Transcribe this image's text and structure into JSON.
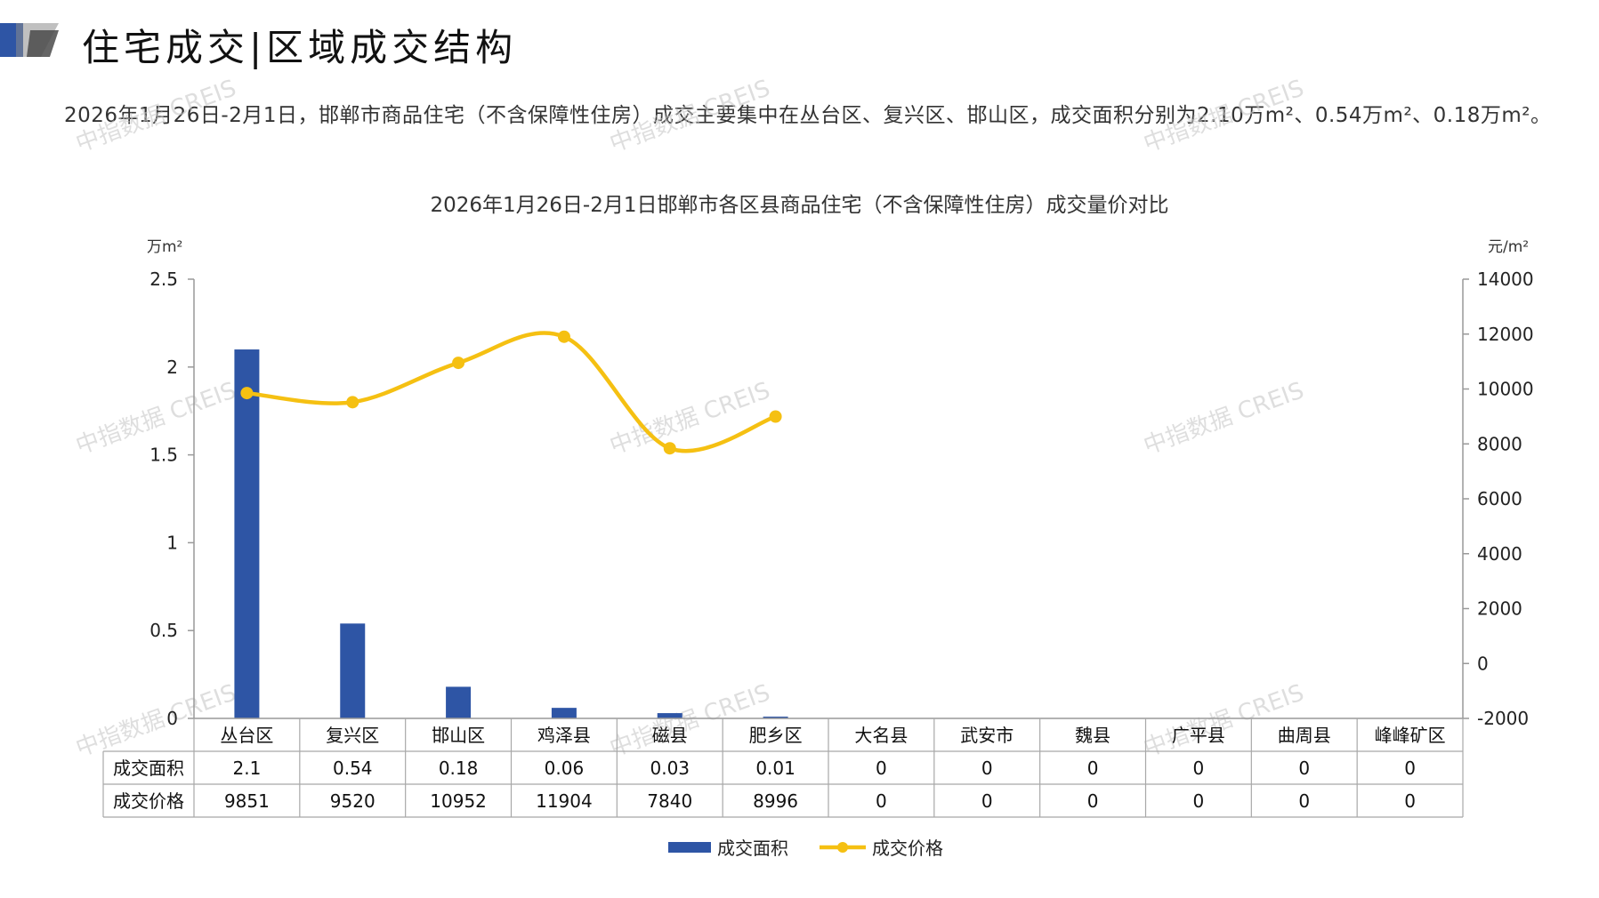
{
  "header": {
    "title": "住宅成交|区域成交结构"
  },
  "summary": "2026年1月26日-2月1日，邯郸市商品住宅（不含保障性住房）成交主要集中在丛台区、复兴区、邯山区，成交面积分别为2.10万m²、0.54万m²、0.18万m²。",
  "watermark": "中指数据 CREIS",
  "colors": {
    "bar": "#2E55A5",
    "line": "#F5C012",
    "logo_dark": "#2E55A5",
    "logo_gray": "#8C8C8C"
  },
  "chart_data": {
    "type": "bar",
    "title": "2026年1月26日-2月1日邯郸市各区县商品住宅（不含保障性住房）成交量价对比",
    "y_left_unit": "万m²",
    "y_right_unit": "元/m²",
    "ylim_left": [
      0,
      2.5
    ],
    "yticks_left": [
      "2.5",
      "2",
      "1.5",
      "1",
      "0.5",
      "0"
    ],
    "ylim_right": [
      -2000,
      14000
    ],
    "yticks_right": [
      "14000",
      "12000",
      "10000",
      "8000",
      "6000",
      "4000",
      "2000",
      "0",
      "-2000"
    ],
    "categories": [
      "丛台区",
      "复兴区",
      "邯山区",
      "鸡泽县",
      "磁县",
      "肥乡区",
      "大名县",
      "武安市",
      "魏县",
      "广平县",
      "曲周县",
      "峰峰矿区"
    ],
    "series": [
      {
        "name": "成交面积",
        "type": "bar",
        "axis": "left",
        "values": [
          2.1,
          0.54,
          0.18,
          0.06,
          0.03,
          0.01,
          0,
          0,
          0,
          0,
          0,
          0
        ],
        "labels": [
          "2.1",
          "0.54",
          "0.18",
          "0.06",
          "0.03",
          "0.01",
          "0",
          "0",
          "0",
          "0",
          "0",
          "0"
        ]
      },
      {
        "name": "成交价格",
        "type": "line",
        "axis": "right",
        "values": [
          9851,
          9520,
          10952,
          11904,
          7840,
          8996,
          0,
          0,
          0,
          0,
          0,
          0
        ],
        "labels": [
          "9851",
          "9520",
          "10952",
          "11904",
          "7840",
          "8996",
          "0",
          "0",
          "0",
          "0",
          "0",
          "0"
        ],
        "plotted_points": 6
      }
    ],
    "legend": [
      "成交面积",
      "成交价格"
    ],
    "legend_position": "bottom"
  }
}
